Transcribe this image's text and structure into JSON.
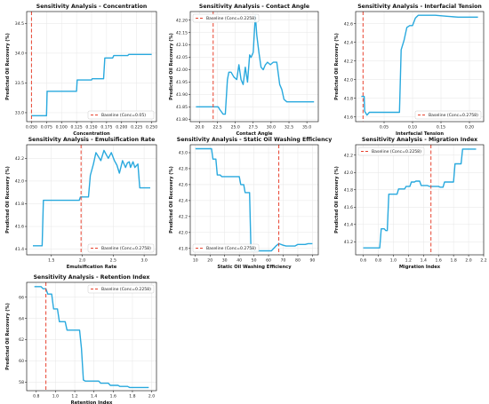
{
  "figure": {
    "line_color": "#29a9de",
    "baseline_color": "#e8432f",
    "grid_color": "#e6e6e6",
    "ylabel": "Predicted Oil Recovery (%)"
  },
  "chart_data": [
    {
      "type": "line",
      "title": "Sensitivity Analysis - Concentration",
      "xlabel": "Concentration",
      "ylabel": "Predicted Oil Recovery (%)",
      "xlim": [
        0.042,
        0.258
      ],
      "ylim": [
        32.85,
        34.7
      ],
      "xticks": [
        0.05,
        0.075,
        0.1,
        0.125,
        0.15,
        0.175,
        0.2,
        0.225,
        0.25
      ],
      "xtick_labels": [
        "0.050",
        "0.075",
        "0.100",
        "0.125",
        "0.150",
        "0.175",
        "0.200",
        "0.225",
        "0.250"
      ],
      "yticks": [
        33.0,
        33.5,
        34.0,
        34.5
      ],
      "ytick_labels": [
        "33.0",
        "33.5",
        "34.0",
        "34.5"
      ],
      "baseline": 0.05,
      "legend": "Baseline (Conc=0.05)",
      "legend_loc": "lower right",
      "x": [
        0.05,
        0.075,
        0.076,
        0.1,
        0.101,
        0.125,
        0.126,
        0.15,
        0.151,
        0.17,
        0.172,
        0.185,
        0.187,
        0.21,
        0.212,
        0.25
      ],
      "y": [
        32.95,
        32.95,
        33.36,
        33.36,
        33.36,
        33.36,
        33.55,
        33.55,
        33.57,
        33.57,
        33.92,
        33.92,
        33.96,
        33.96,
        33.98,
        33.98
      ]
    },
    {
      "type": "line",
      "title": "Sensitivity Analysis - Contact Angle",
      "xlabel": "Contact Angle",
      "ylabel": "Predicted Oil Recovery (%)",
      "xlim": [
        18.7,
        36.6
      ],
      "ylim": [
        41.79,
        42.235
      ],
      "xticks": [
        20.0,
        22.5,
        25.0,
        27.5,
        30.0,
        32.5,
        35.0
      ],
      "xtick_labels": [
        "20.0",
        "22.5",
        "25.0",
        "27.5",
        "30.0",
        "32.5",
        "35.0"
      ],
      "yticks": [
        41.8,
        41.85,
        41.9,
        41.95,
        42.0,
        42.05,
        42.1,
        42.15,
        42.2
      ],
      "ytick_labels": [
        "41.80",
        "41.85",
        "41.90",
        "41.95",
        "42.00",
        "42.05",
        "42.10",
        "42.15",
        "42.20"
      ],
      "baseline": 21.9,
      "legend": "Baseline (Conc=0.2258)",
      "legend_loc": "upper left",
      "x": [
        19.5,
        22.6,
        22.8,
        23.3,
        23.6,
        23.9,
        24.1,
        24.4,
        24.8,
        25.2,
        25.5,
        25.8,
        26.1,
        26.4,
        26.7,
        27.0,
        27.2,
        27.5,
        27.8,
        28.0,
        28.3,
        28.6,
        28.9,
        29.2,
        29.5,
        29.9,
        30.3,
        30.8,
        31.2,
        31.5,
        31.8,
        32.2,
        32.6,
        36.0
      ],
      "y": [
        41.85,
        41.85,
        41.84,
        41.82,
        41.82,
        41.96,
        41.99,
        41.99,
        41.97,
        41.96,
        42.02,
        41.96,
        41.94,
        42.01,
        41.95,
        42.06,
        42.05,
        42.07,
        42.22,
        42.14,
        42.07,
        42.01,
        42.0,
        42.02,
        42.03,
        42.02,
        42.03,
        42.03,
        41.94,
        41.92,
        41.88,
        41.87,
        41.87,
        41.87
      ]
    },
    {
      "type": "line",
      "title": "Sensitivity Analysis - Interfacial Tension",
      "xlabel": "Interfacial Tension",
      "ylabel": "Predicted Oil Recovery (%)",
      "xlim": [
        0.0,
        0.225
      ],
      "ylim": [
        41.55,
        42.73
      ],
      "xticks": [
        0.05,
        0.1,
        0.15,
        0.2
      ],
      "xtick_labels": [
        "0.05",
        "0.10",
        "0.15",
        "0.20"
      ],
      "yticks": [
        41.6,
        41.8,
        42.0,
        42.2,
        42.4,
        42.6
      ],
      "ytick_labels": [
        "41.6",
        "41.8",
        "42.0",
        "42.2",
        "42.4",
        "42.6"
      ],
      "baseline": 0.013,
      "legend": "Baseline (Conc=0.2758)",
      "legend_loc": "lower right",
      "x": [
        0.01,
        0.015,
        0.016,
        0.02,
        0.024,
        0.03,
        0.05,
        0.07,
        0.077,
        0.08,
        0.085,
        0.09,
        0.095,
        0.1,
        0.105,
        0.11,
        0.115,
        0.12,
        0.14,
        0.16,
        0.18,
        0.19,
        0.215
      ],
      "y": [
        41.82,
        41.82,
        41.66,
        41.62,
        41.65,
        41.65,
        41.65,
        41.65,
        41.65,
        42.32,
        42.42,
        42.56,
        42.58,
        42.58,
        42.66,
        42.69,
        42.69,
        42.69,
        42.69,
        42.68,
        42.67,
        42.67,
        42.67
      ]
    },
    {
      "type": "line",
      "title": "Sensitivity Analysis - Emulsification Rate",
      "xlabel": "Emulsification Rate",
      "ylabel": "Predicted Oil Recovery (%)",
      "xlim": [
        1.1,
        3.2
      ],
      "ylim": [
        41.35,
        42.32
      ],
      "xticks": [
        1.5,
        2.0,
        2.5,
        3.0
      ],
      "xtick_labels": [
        "1.5",
        "2.0",
        "2.5",
        "3.0"
      ],
      "yticks": [
        41.4,
        41.6,
        41.8,
        42.0,
        42.2
      ],
      "ytick_labels": [
        "41.4",
        "41.6",
        "41.8",
        "42.0",
        "42.2"
      ],
      "baseline": 1.98,
      "legend": "Baseline (Conc=0.2758)",
      "legend_loc": "lower right",
      "x": [
        1.2,
        1.35,
        1.37,
        1.95,
        1.97,
        2.1,
        2.13,
        2.18,
        2.22,
        2.3,
        2.35,
        2.42,
        2.47,
        2.52,
        2.56,
        2.6,
        2.65,
        2.7,
        2.73,
        2.76,
        2.78,
        2.82,
        2.85,
        2.9,
        2.93,
        2.95,
        3.1
      ],
      "y": [
        41.43,
        41.43,
        41.83,
        41.83,
        41.86,
        41.86,
        42.05,
        42.15,
        42.25,
        42.18,
        42.27,
        42.2,
        42.25,
        42.18,
        42.14,
        42.07,
        42.18,
        42.12,
        42.16,
        42.17,
        42.12,
        42.17,
        42.12,
        42.15,
        41.94,
        41.94,
        41.94
      ]
    },
    {
      "type": "line",
      "title": "Sensitivity Analysis - Static Oil Washing Efficiency",
      "xlabel": "Static Oil Washing Efficiency",
      "ylabel": "Predicted Oil Recovery (%)",
      "xlim": [
        6.5,
        94.0
      ],
      "ylim": [
        41.72,
        43.1
      ],
      "xticks": [
        10,
        20,
        30,
        40,
        50,
        60,
        70,
        80,
        90
      ],
      "xtick_labels": [
        "10",
        "20",
        "30",
        "40",
        "50",
        "60",
        "70",
        "80",
        "90"
      ],
      "yticks": [
        41.8,
        42.0,
        42.2,
        42.4,
        42.6,
        42.8,
        43.0
      ],
      "ytick_labels": [
        "41.8",
        "42.0",
        "42.2",
        "42.4",
        "42.6",
        "42.8",
        "43.0"
      ],
      "baseline": 67,
      "legend": "Baseline (Conc=0.2758)",
      "legend_loc": "lower left",
      "x": [
        10,
        21,
        22,
        24,
        25,
        27,
        28,
        40,
        41,
        43,
        44,
        47,
        48,
        55,
        57,
        60,
        62,
        65,
        67,
        70,
        72,
        78,
        80,
        85,
        87,
        90
      ],
      "y": [
        43.05,
        43.05,
        42.92,
        42.92,
        42.72,
        42.72,
        42.7,
        42.7,
        42.6,
        42.6,
        42.5,
        42.5,
        41.77,
        41.77,
        41.77,
        41.77,
        41.77,
        41.83,
        41.86,
        41.84,
        41.83,
        41.83,
        41.85,
        41.85,
        41.86,
        41.86
      ]
    },
    {
      "type": "line",
      "title": "Sensitivity Analysis - Migration Index",
      "xlabel": "Migration Index",
      "ylabel": "Predicted Oil Recovery (%)",
      "xlim": [
        0.5,
        2.2
      ],
      "ylim": [
        41.05,
        42.32
      ],
      "xticks": [
        0.6,
        0.8,
        1.0,
        1.2,
        1.4,
        1.6,
        1.8,
        2.0,
        2.2
      ],
      "xtick_labels": [
        "0.6",
        "0.8",
        "1.0",
        "1.2",
        "1.4",
        "1.6",
        "1.8",
        "2.0",
        "2.2"
      ],
      "yticks": [
        41.2,
        41.4,
        41.6,
        41.8,
        42.0,
        42.2
      ],
      "ytick_labels": [
        "41.2",
        "41.4",
        "41.6",
        "41.8",
        "42.0",
        "42.2"
      ],
      "baseline": 1.5,
      "legend": "Baseline (Conc=0.2258)",
      "legend_loc": "upper left",
      "x": [
        0.6,
        0.82,
        0.84,
        0.88,
        0.9,
        0.92,
        0.94,
        0.96,
        1.05,
        1.07,
        1.15,
        1.17,
        1.22,
        1.24,
        1.28,
        1.3,
        1.35,
        1.37,
        1.45,
        1.48,
        1.6,
        1.62,
        1.66,
        1.68,
        1.8,
        1.82,
        1.9,
        1.92,
        2.1
      ],
      "y": [
        41.13,
        41.13,
        41.35,
        41.35,
        41.33,
        41.33,
        41.75,
        41.75,
        41.75,
        41.81,
        41.81,
        41.84,
        41.84,
        41.89,
        41.89,
        41.9,
        41.9,
        41.85,
        41.85,
        41.84,
        41.84,
        41.83,
        41.83,
        41.89,
        41.89,
        42.1,
        42.1,
        42.27,
        42.27
      ]
    },
    {
      "type": "line",
      "title": "Sensitivity Analysis - Retention Index",
      "xlabel": "Retention Index",
      "ylabel": "Predicted Oil Recovery (%)",
      "xlim": [
        0.7,
        2.05
      ],
      "ylim": [
        57.2,
        67.4
      ],
      "xticks": [
        0.8,
        1.0,
        1.2,
        1.4,
        1.6,
        1.8,
        2.0
      ],
      "xtick_labels": [
        "0.8",
        "1.0",
        "1.2",
        "1.4",
        "1.6",
        "1.8",
        "2.0"
      ],
      "yticks": [
        58,
        60,
        62,
        64,
        66
      ],
      "ytick_labels": [
        "58",
        "60",
        "62",
        "64",
        "66"
      ],
      "baseline": 0.9,
      "legend": "Baseline (Conc=0.2258)",
      "legend_loc": "upper right",
      "x": [
        0.78,
        0.85,
        0.87,
        0.9,
        0.92,
        0.96,
        0.98,
        1.02,
        1.04,
        1.1,
        1.12,
        1.25,
        1.27,
        1.29,
        1.31,
        1.45,
        1.47,
        1.55,
        1.57,
        1.65,
        1.67,
        1.75,
        1.77,
        1.97
      ],
      "y": [
        67.0,
        67.0,
        66.8,
        66.8,
        66.3,
        66.3,
        64.9,
        64.9,
        63.7,
        63.7,
        62.9,
        62.9,
        61.2,
        58.2,
        58.1,
        58.1,
        57.9,
        57.9,
        57.7,
        57.7,
        57.6,
        57.6,
        57.5,
        57.5
      ]
    }
  ]
}
